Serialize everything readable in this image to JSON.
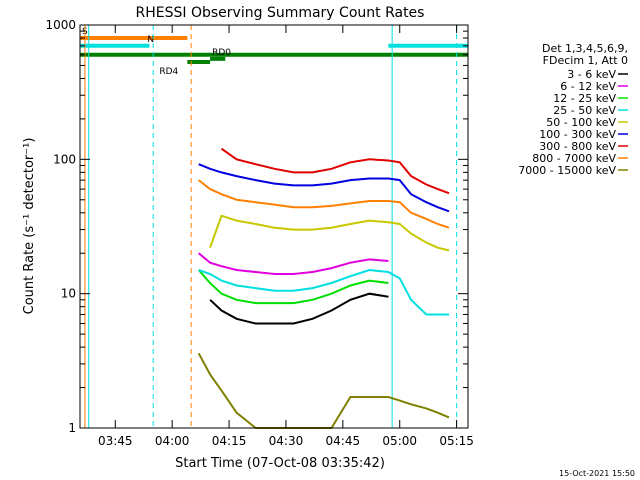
{
  "chart_data": {
    "type": "line",
    "title": "RHESSI Observing Summary Count Rates",
    "xlabel": "Start Time (07-Oct-08 03:35:42)",
    "ylabel": "Count Rate (s⁻¹ detector⁻¹)",
    "yscale": "log",
    "ylim": [
      1,
      1000
    ],
    "xlim": [
      "03:35:42",
      "05:18:00"
    ],
    "x_ticks": [
      "03:45",
      "04:00",
      "04:15",
      "04:30",
      "04:45",
      "05:00",
      "05:15"
    ],
    "y_ticks": [
      "1",
      "10",
      "100",
      "1000"
    ],
    "legend": {
      "position": "right",
      "header": [
        "Det 1,3,4,5,6,9,",
        "FDecim 1, Att 0"
      ]
    },
    "x_sample_times": [
      "04:07",
      "04:10",
      "04:13",
      "04:17",
      "04:22",
      "04:27",
      "04:32",
      "04:37",
      "04:42",
      "04:47",
      "04:52",
      "04:57",
      "05:00",
      "05:03",
      "05:07",
      "05:10",
      "05:13"
    ],
    "series": [
      {
        "name": "3 - 6 keV",
        "color": "#000000",
        "values": [
          null,
          9,
          7.5,
          6.5,
          6,
          6,
          6,
          6.5,
          7.5,
          9,
          10,
          9.5,
          null,
          null,
          null,
          null,
          null
        ]
      },
      {
        "name": "6 - 12 keV",
        "color": "#e000e0",
        "values": [
          20,
          17,
          16,
          15,
          14.5,
          14,
          14,
          14.5,
          15.5,
          17,
          18,
          17.5,
          null,
          null,
          null,
          null,
          null
        ]
      },
      {
        "name": "12 - 25 keV",
        "color": "#00e000",
        "values": [
          15,
          12,
          10,
          9,
          8.5,
          8.5,
          8.5,
          9,
          10,
          11.5,
          12.5,
          12,
          null,
          null,
          null,
          null,
          null
        ]
      },
      {
        "name": "25 - 50 keV",
        "color": "#00e0e0",
        "values": [
          15,
          14,
          12.5,
          11.5,
          11,
          10.5,
          10.5,
          11,
          12,
          13.5,
          15,
          14.5,
          13,
          9,
          7,
          7,
          7
        ]
      },
      {
        "name": "50 - 100 keV",
        "color": "#c8c800",
        "values": [
          null,
          22,
          38,
          35,
          33,
          31,
          30,
          30,
          31,
          33,
          35,
          34,
          33,
          28,
          24,
          22,
          21
        ]
      },
      {
        "name": "100 - 300 keV",
        "color": "#0000e0",
        "values": [
          92,
          85,
          80,
          75,
          70,
          66,
          64,
          64,
          66,
          70,
          72,
          72,
          70,
          55,
          48,
          44,
          41
        ]
      },
      {
        "name": "300 - 800 keV",
        "color": "#e00000",
        "values": [
          null,
          null,
          120,
          100,
          92,
          85,
          80,
          80,
          85,
          95,
          100,
          98,
          95,
          75,
          65,
          60,
          56
        ]
      },
      {
        "name": "800 - 7000 keV",
        "color": "#ff8000",
        "values": [
          70,
          60,
          55,
          50,
          48,
          46,
          44,
          44,
          45,
          47,
          49,
          49,
          48,
          40,
          36,
          33,
          31
        ]
      },
      {
        "name": "7000 - 15000 keV",
        "color": "#808000",
        "values": [
          3.6,
          2.5,
          1.9,
          1.3,
          1,
          1,
          1,
          1,
          1,
          1.7,
          1.7,
          1.7,
          1.6,
          1.5,
          1.4,
          1.3,
          1.2
        ]
      }
    ],
    "flag_bars": [
      {
        "label": "S",
        "color": "#ff8000",
        "start": "03:35:42",
        "end": "04:04",
        "level": 800
      },
      {
        "label": "N",
        "color": "#00e0e0",
        "start": "03:35:42",
        "end": "03:54",
        "level": 700
      },
      {
        "label": "",
        "color": "#00e0e0",
        "start": "04:57",
        "end": "05:18",
        "level": 700
      },
      {
        "label": "",
        "color": "#008000",
        "start": "03:35:42",
        "end": "05:18",
        "level": 600
      },
      {
        "label": "RD0",
        "color": "#008000",
        "start": "04:10",
        "end": "04:14",
        "level": 560
      },
      {
        "label": "RD4",
        "color": "#008000",
        "start": "04:04",
        "end": "04:10",
        "level": 530
      }
    ],
    "vertical_markers": [
      {
        "time": "03:37",
        "color": "#ff8000",
        "style": "solid"
      },
      {
        "time": "03:38",
        "color": "#00e0e0",
        "style": "solid"
      },
      {
        "time": "03:55",
        "color": "#00e0e0",
        "style": "dashed"
      },
      {
        "time": "04:05",
        "color": "#ff8000",
        "style": "dashed"
      },
      {
        "time": "04:58",
        "color": "#00e0e0",
        "style": "solid"
      },
      {
        "time": "05:15",
        "color": "#00e0e0",
        "style": "dashed"
      }
    ],
    "grid": false
  },
  "footer_timestamp": "15-Oct-2021 15:50"
}
